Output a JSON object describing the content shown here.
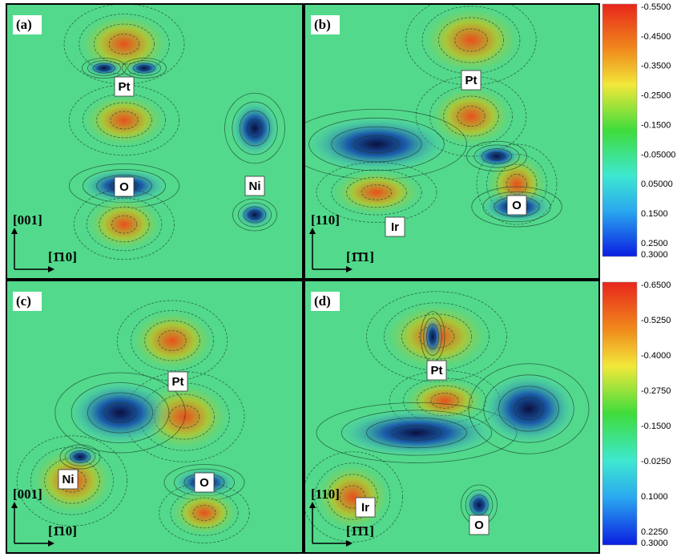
{
  "panels": [
    {
      "label": "(a)",
      "atoms": [
        "Pt",
        "O",
        "Ni"
      ],
      "axes": [
        "[001]",
        "[1̄10]"
      ]
    },
    {
      "label": "(b)",
      "atoms": [
        "Pt",
        "O",
        "Ir"
      ],
      "axes": [
        "[110]",
        "[1̄1̄1]"
      ]
    },
    {
      "label": "(c)",
      "atoms": [
        "Pt",
        "Ni",
        "O"
      ],
      "axes": [
        "[001]",
        "[1̄10]"
      ]
    },
    {
      "label": "(d)",
      "atoms": [
        "Pt",
        "Ir",
        "O"
      ],
      "axes": [
        "[110]",
        "[1̄1̄1]"
      ]
    }
  ],
  "colorbars": [
    {
      "ticks": [
        "-0.5500",
        "-0.4500",
        "-0.3500",
        "-0.2500",
        "-0.1500",
        "-0.05000",
        "0.05000",
        "0.1500",
        "0.2500",
        "0.3000"
      ]
    },
    {
      "ticks": [
        "-0.6500",
        "-0.5250",
        "-0.4000",
        "-0.2750",
        "-0.1500",
        "-0.0250",
        "0.1000",
        "0.2250",
        "0.3000"
      ]
    }
  ]
}
